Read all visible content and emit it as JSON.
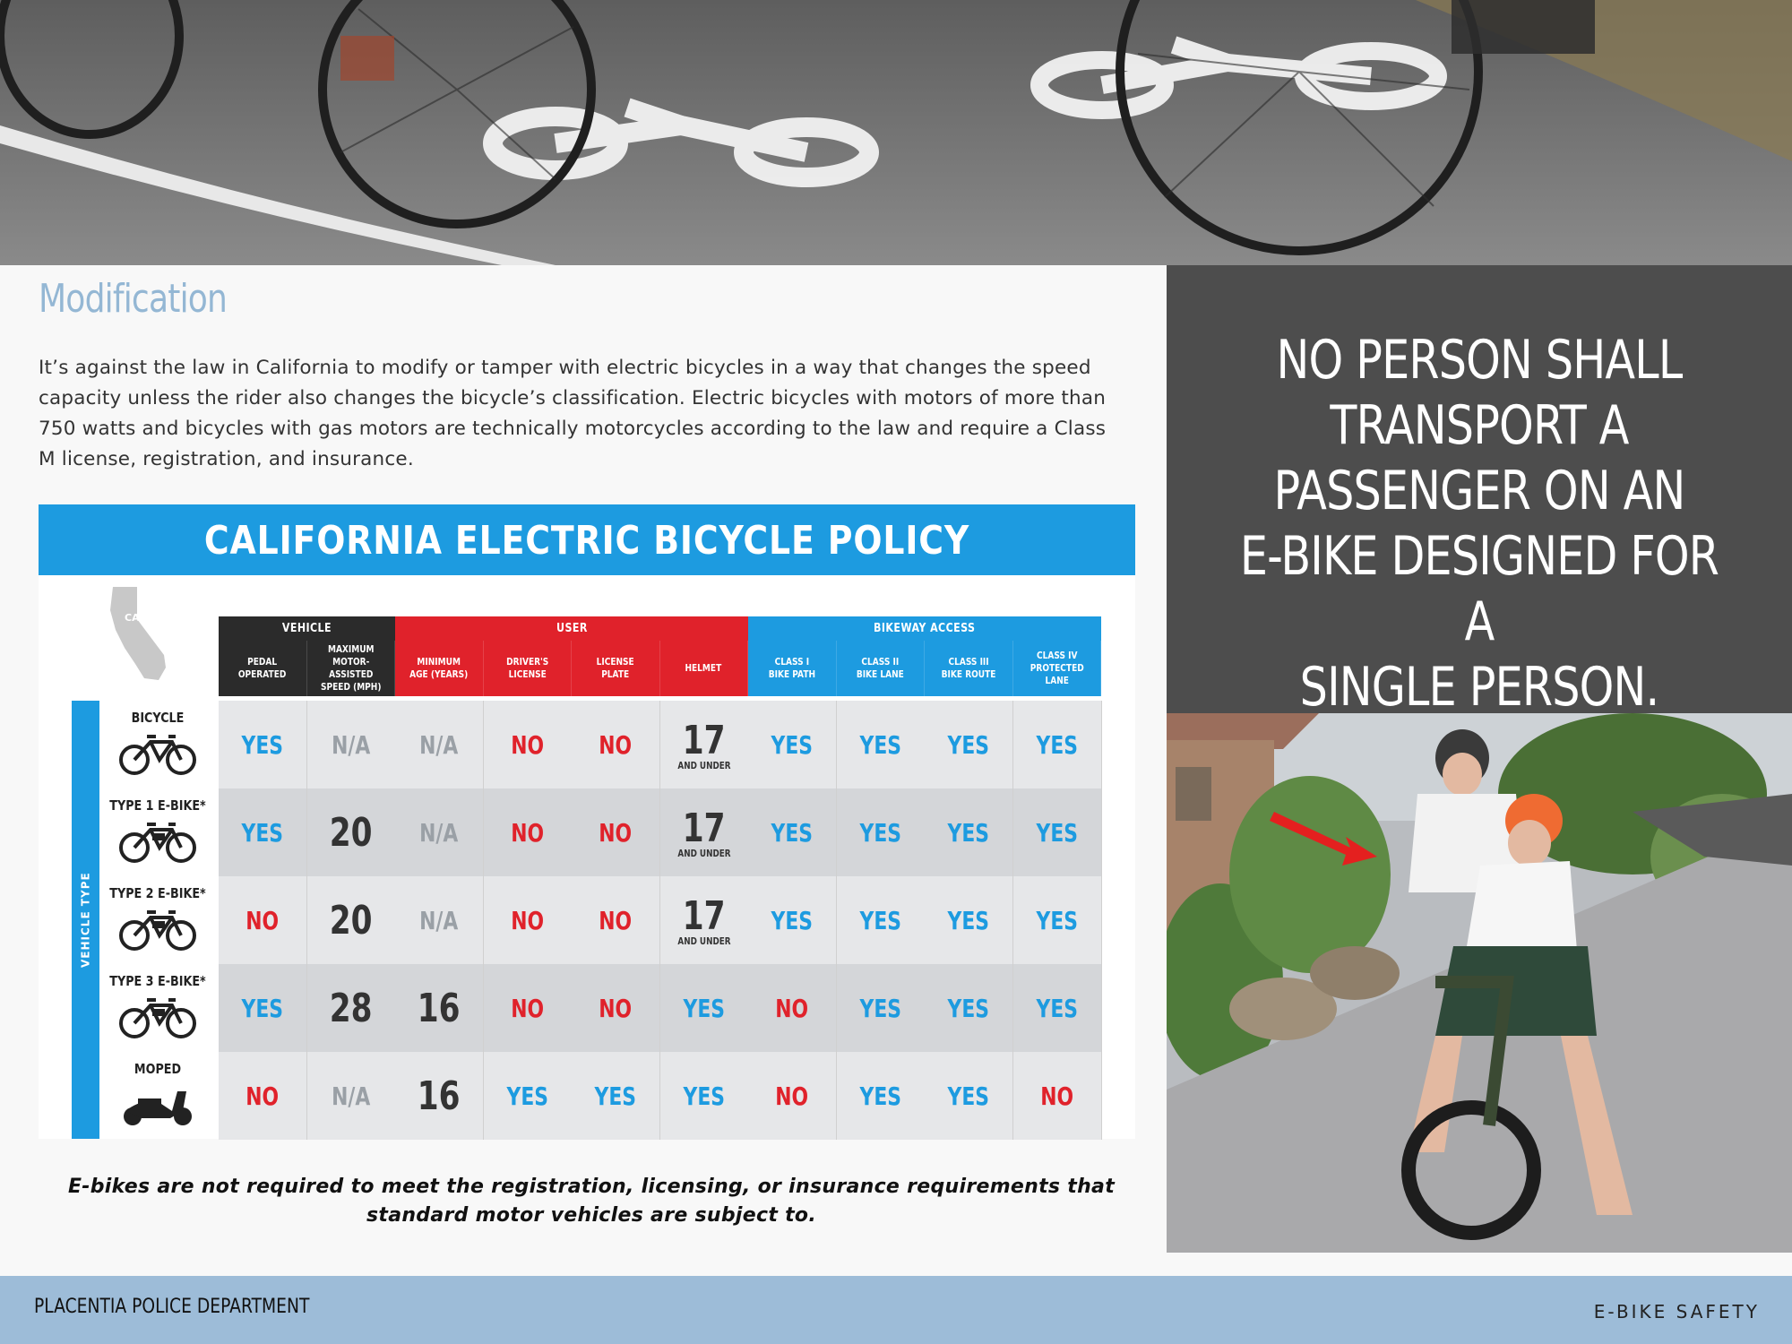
{
  "section": {
    "heading": "Modification",
    "body": "It’s against the law in California to modify or tamper with electric bicycles in a way that changes the speed capacity unless the rider also changes the bicycle’s classification. Electric bicycles with motors of more than 750 watts and bicycles with gas motors are technically motorcycles according to the law and require a Class M license, registration, and insurance."
  },
  "policy_table": {
    "title": "CALIFORNIA ELECTRIC BICYCLE POLICY",
    "state_abbr": "CA",
    "side_label": "VEHICLE TYPE",
    "groups": [
      {
        "label": "VEHICLE",
        "color": "#2b2b2b"
      },
      {
        "label": "USER",
        "color": "#e0222b"
      },
      {
        "label": "BIKEWAY ACCESS",
        "color": "#1d9be0"
      }
    ],
    "columns": [
      {
        "l1": "PEDAL",
        "l2": "OPERATED",
        "l3": ""
      },
      {
        "l1": "MAXIMUM",
        "l2": "MOTOR-ASSISTED",
        "l3": "SPEED (MPH)"
      },
      {
        "l1": "MINIMUM",
        "l2": "AGE (YEARS)",
        "l3": ""
      },
      {
        "l1": "DRIVER'S",
        "l2": "LICENSE",
        "l3": ""
      },
      {
        "l1": "LICENSE",
        "l2": "PLATE",
        "l3": ""
      },
      {
        "l1": "HELMET",
        "l2": "",
        "l3": ""
      },
      {
        "l1": "CLASS I",
        "l2": "BIKE PATH",
        "l3": ""
      },
      {
        "l1": "CLASS II",
        "l2": "BIKE LANE",
        "l3": ""
      },
      {
        "l1": "CLASS III",
        "l2": "BIKE ROUTE",
        "l3": ""
      },
      {
        "l1": "CLASS IV",
        "l2": "PROTECTED LANE",
        "l3": ""
      }
    ],
    "rows": [
      {
        "label": "BICYCLE",
        "icon": "bicycle-icon",
        "cells": [
          "YES",
          "N/A",
          "N/A",
          "NO",
          "NO",
          "17",
          "YES",
          "YES",
          "YES",
          "YES"
        ]
      },
      {
        "label": "TYPE 1 E-BIKE*",
        "icon": "ebike-icon",
        "cells": [
          "YES",
          "20",
          "N/A",
          "NO",
          "NO",
          "17",
          "YES",
          "YES",
          "YES",
          "YES"
        ]
      },
      {
        "label": "TYPE 2 E-BIKE*",
        "icon": "ebike-icon",
        "cells": [
          "NO",
          "20",
          "N/A",
          "NO",
          "NO",
          "17",
          "YES",
          "YES",
          "YES",
          "YES"
        ]
      },
      {
        "label": "TYPE 3 E-BIKE*",
        "icon": "ebike-icon",
        "cells": [
          "YES",
          "28",
          "16",
          "NO",
          "NO",
          "YES",
          "NO",
          "YES",
          "YES",
          "YES"
        ]
      },
      {
        "label": "MOPED",
        "icon": "moped-icon",
        "cells": [
          "NO",
          "N/A",
          "16",
          "YES",
          "YES",
          "YES",
          "NO",
          "YES",
          "YES",
          "NO"
        ]
      }
    ],
    "helmet_sub": "AND UNDER",
    "colors": {
      "yes": "#1d9be0",
      "no": "#e0222b",
      "na": "#9aa0a6"
    }
  },
  "footnote": "E-bikes are not required to meet the registration, licensing, or insurance requirements that standard motor vehicles are subject to.",
  "quote": {
    "line1": "NO PERSON SHALL",
    "line2": "TRANSPORT A",
    "line3": "PASSENGER ON AN",
    "line4": "E-BIKE DESIGNED FOR A",
    "line5": "SINGLE PERSON."
  },
  "footer": {
    "department": "PLACENTIA POLICE DEPARTMENT",
    "tag": "E-BIKE SAFETY"
  }
}
